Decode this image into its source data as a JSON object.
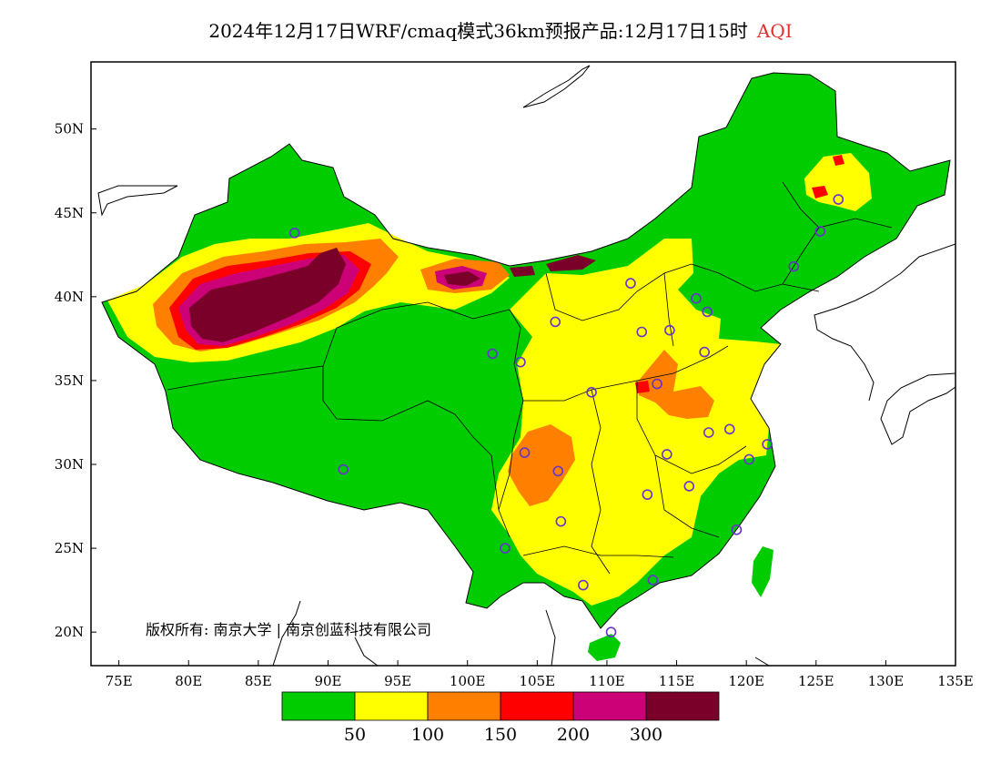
{
  "title": {
    "main": "2024年12月17日WRF/cmaq模式36km预报产品:12月17日15时",
    "variable": "AQI"
  },
  "map": {
    "lon_range": [
      73,
      135
    ],
    "lat_range": [
      18,
      54
    ],
    "lon_ticks": [
      "75E",
      "80E",
      "85E",
      "90E",
      "95E",
      "100E",
      "105E",
      "110E",
      "115E",
      "120E",
      "125E",
      "130E",
      "135E"
    ],
    "lat_ticks": [
      "20N",
      "25N",
      "30N",
      "35N",
      "40N",
      "45N",
      "50N"
    ],
    "copyright": "版权所有: 南京大学 | 南京创蓝科技有限公司"
  },
  "legend": {
    "colors": [
      "#00cc00",
      "#ffff00",
      "#ff8000",
      "#ff0000",
      "#cc0077",
      "#7a0029"
    ],
    "labels": [
      "50",
      "100",
      "150",
      "200",
      "300"
    ]
  },
  "stations": [
    {
      "lon": 87.6,
      "lat": 43.8
    },
    {
      "lon": 91.1,
      "lat": 29.7
    },
    {
      "lon": 101.8,
      "lat": 36.6
    },
    {
      "lon": 103.8,
      "lat": 36.1
    },
    {
      "lon": 106.3,
      "lat": 38.5
    },
    {
      "lon": 104.1,
      "lat": 30.7
    },
    {
      "lon": 106.5,
      "lat": 29.6
    },
    {
      "lon": 102.7,
      "lat": 25.0
    },
    {
      "lon": 106.7,
      "lat": 26.6
    },
    {
      "lon": 108.3,
      "lat": 22.8
    },
    {
      "lon": 110.3,
      "lat": 20.0
    },
    {
      "lon": 113.3,
      "lat": 23.1
    },
    {
      "lon": 112.9,
      "lat": 28.2
    },
    {
      "lon": 114.3,
      "lat": 30.6
    },
    {
      "lon": 115.9,
      "lat": 28.7
    },
    {
      "lon": 119.3,
      "lat": 26.1
    },
    {
      "lon": 120.2,
      "lat": 30.3
    },
    {
      "lon": 121.5,
      "lat": 31.2
    },
    {
      "lon": 118.8,
      "lat": 32.1
    },
    {
      "lon": 117.3,
      "lat": 31.9
    },
    {
      "lon": 113.6,
      "lat": 34.8
    },
    {
      "lon": 108.9,
      "lat": 34.3
    },
    {
      "lon": 112.5,
      "lat": 37.9
    },
    {
      "lon": 114.5,
      "lat": 38.0
    },
    {
      "lon": 117.0,
      "lat": 36.7
    },
    {
      "lon": 116.4,
      "lat": 39.9
    },
    {
      "lon": 117.2,
      "lat": 39.1
    },
    {
      "lon": 111.7,
      "lat": 40.8
    },
    {
      "lon": 123.4,
      "lat": 41.8
    },
    {
      "lon": 125.3,
      "lat": 43.9
    },
    {
      "lon": 126.6,
      "lat": 45.8
    }
  ]
}
